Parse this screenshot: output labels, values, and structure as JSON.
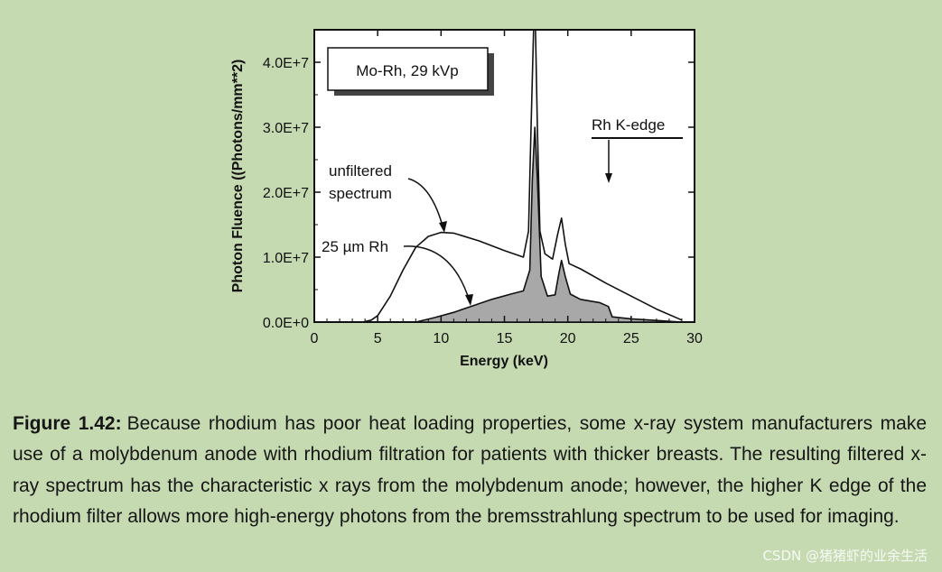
{
  "chart_data": {
    "type": "area",
    "xlabel": "Energy (keV)",
    "ylabel": "Photon Fluence ((Photons/mm**2)",
    "xlim": [
      0,
      30
    ],
    "ylim": [
      0,
      45000000
    ],
    "x_ticks": [
      "0",
      "5",
      "10",
      "15",
      "20",
      "25",
      "30"
    ],
    "y_ticks": [
      "0.0E+0",
      "1.0E+7",
      "2.0E+7",
      "3.0E+7",
      "4.0E+7"
    ],
    "grid": false,
    "legend_box": "Mo-Rh, 29 kVp",
    "annotations": {
      "unfiltered": [
        "unfiltered",
        "spectrum"
      ],
      "filtered": "25 µm Rh",
      "k_edge": "Rh K-edge"
    },
    "k_edge_energy": 23.2,
    "series": [
      {
        "name": "unfiltered spectrum",
        "fill": "none",
        "x": [
          3.8,
          4.5,
          5.0,
          6.0,
          7.0,
          8.0,
          9.0,
          10.0,
          11.0,
          13.0,
          15.0,
          16.5,
          16.9,
          17.1,
          17.3,
          17.45,
          17.6,
          17.8,
          18.2,
          18.8,
          19.2,
          19.5,
          19.8,
          20.1,
          21.0,
          23.0,
          25.0,
          27.0,
          29.0
        ],
        "y": [
          0,
          300000,
          1000000,
          4000000,
          8000000,
          11500000,
          13200000,
          13800000,
          13700000,
          12500000,
          11000000,
          10000000,
          14000000,
          30000000,
          45000000,
          45000000,
          30000000,
          14000000,
          10500000,
          9700000,
          13500000,
          16000000,
          12000000,
          9000000,
          8200000,
          6000000,
          4000000,
          2000000,
          300000
        ]
      },
      {
        "name": "25 µm Rh",
        "fill": "#a8a8a8",
        "x": [
          8.0,
          9.5,
          11.0,
          12.5,
          14.0,
          15.5,
          16.5,
          17.0,
          17.2,
          17.4,
          17.6,
          17.9,
          18.4,
          19.0,
          19.3,
          19.5,
          19.8,
          20.2,
          21.0,
          22.5,
          23.2,
          23.5,
          25.0,
          27.0,
          29.0
        ],
        "y": [
          0,
          700000,
          1500000,
          2500000,
          3500000,
          4300000,
          4800000,
          8000000,
          22000000,
          30000000,
          22000000,
          7000000,
          4000000,
          4200000,
          7500000,
          9500000,
          7000000,
          4300000,
          3500000,
          3000000,
          2400000,
          800000,
          500000,
          250000,
          0
        ]
      }
    ]
  },
  "caption": {
    "label": "Figure 1.42:",
    "text": "Because rhodium has poor heat loading properties, some x-ray system manufacturers make use of a molybdenum anode with rhodium filtration for patients with thicker breasts. The resulting filtered x-ray spectrum has the characteristic x rays from the molybdenum anode; however, the higher K edge of the rhodium filter allows more high-energy photons from the bremsstrahlung spectrum to be used for imaging."
  },
  "watermark": "CSDN @猪猪虾的业余生活"
}
